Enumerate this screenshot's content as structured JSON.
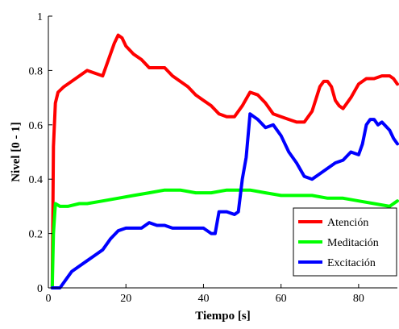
{
  "chart_data": {
    "type": "line",
    "title": "",
    "xlabel": "Tiempo [s]",
    "ylabel": "Nivel [0 - 1]",
    "xlim": [
      0,
      90
    ],
    "ylim": [
      0,
      1
    ],
    "xticks": [
      0,
      20,
      40,
      60,
      80
    ],
    "yticks": [
      0,
      0.2,
      0.4,
      0.6,
      0.8,
      1
    ],
    "xtick_labels": [
      "0",
      "20",
      "40",
      "60",
      "80"
    ],
    "ytick_labels": [
      "0",
      "0.2",
      "0.4",
      "0.6",
      "0.8",
      "1"
    ],
    "grid": false,
    "legend_position": "bottom-right",
    "series": [
      {
        "name": "Atención",
        "color": "#ff0000",
        "x": [
          1,
          1.3,
          1.8,
          2.5,
          4,
          6,
          8,
          10,
          12,
          14,
          16,
          17,
          18,
          19,
          20,
          22,
          24,
          26,
          28,
          30,
          32,
          34,
          36,
          38,
          40,
          42,
          44,
          46,
          48,
          50,
          52,
          54,
          56,
          58,
          60,
          62,
          64,
          66,
          68,
          70,
          71,
          72,
          73,
          74,
          75,
          76,
          78,
          80,
          82,
          84,
          86,
          88,
          89,
          90
        ],
        "y": [
          0.0,
          0.52,
          0.68,
          0.72,
          0.74,
          0.76,
          0.78,
          0.8,
          0.79,
          0.78,
          0.86,
          0.9,
          0.93,
          0.92,
          0.89,
          0.86,
          0.84,
          0.81,
          0.81,
          0.81,
          0.78,
          0.76,
          0.74,
          0.71,
          0.69,
          0.67,
          0.64,
          0.63,
          0.63,
          0.67,
          0.72,
          0.71,
          0.68,
          0.64,
          0.63,
          0.62,
          0.61,
          0.61,
          0.65,
          0.74,
          0.76,
          0.76,
          0.74,
          0.69,
          0.67,
          0.66,
          0.7,
          0.75,
          0.77,
          0.77,
          0.78,
          0.78,
          0.77,
          0.75
        ]
      },
      {
        "name": "Meditación",
        "color": "#00ff00",
        "x": [
          1,
          1.3,
          1.8,
          3,
          5,
          8,
          10,
          14,
          18,
          22,
          26,
          30,
          34,
          38,
          42,
          46,
          50,
          52,
          56,
          60,
          64,
          68,
          72,
          76,
          80,
          84,
          88,
          90
        ],
        "y": [
          0.0,
          0.2,
          0.31,
          0.3,
          0.3,
          0.31,
          0.31,
          0.32,
          0.33,
          0.34,
          0.35,
          0.36,
          0.36,
          0.35,
          0.35,
          0.36,
          0.36,
          0.36,
          0.35,
          0.34,
          0.34,
          0.34,
          0.33,
          0.33,
          0.32,
          0.31,
          0.3,
          0.32
        ]
      },
      {
        "name": "Excitación",
        "color": "#0000ff",
        "x": [
          1,
          3,
          4,
          6,
          8,
          10,
          12,
          14,
          16,
          18,
          20,
          22,
          24,
          26,
          28,
          30,
          32,
          34,
          36,
          38,
          40,
          42,
          43,
          44,
          46,
          48,
          49,
          50,
          51,
          52,
          53,
          54,
          56,
          58,
          60,
          62,
          64,
          66,
          68,
          70,
          72,
          74,
          76,
          78,
          80,
          81,
          82,
          83,
          84,
          85,
          86,
          88,
          89,
          90
        ],
        "y": [
          0.0,
          0.0,
          0.02,
          0.06,
          0.08,
          0.1,
          0.12,
          0.14,
          0.18,
          0.21,
          0.22,
          0.22,
          0.22,
          0.24,
          0.23,
          0.23,
          0.22,
          0.22,
          0.22,
          0.22,
          0.22,
          0.2,
          0.2,
          0.28,
          0.28,
          0.27,
          0.28,
          0.4,
          0.48,
          0.64,
          0.63,
          0.62,
          0.59,
          0.6,
          0.56,
          0.5,
          0.46,
          0.41,
          0.4,
          0.42,
          0.44,
          0.46,
          0.47,
          0.5,
          0.49,
          0.53,
          0.6,
          0.62,
          0.62,
          0.6,
          0.61,
          0.58,
          0.55,
          0.53
        ]
      }
    ]
  }
}
